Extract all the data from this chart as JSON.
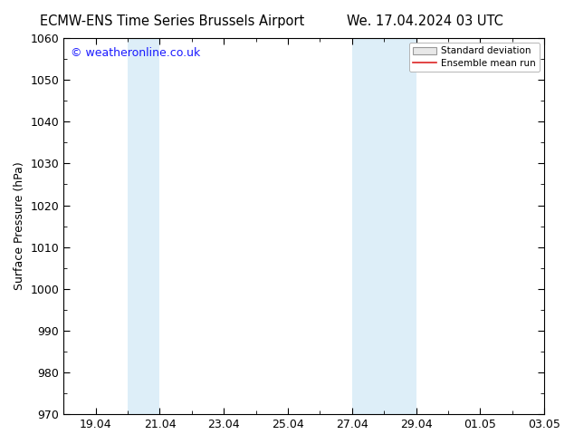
{
  "title_left": "ECMW-ENS Time Series Brussels Airport",
  "title_right": "We. 17.04.2024 03 UTC",
  "ylabel": "Surface Pressure (hPa)",
  "ylim": [
    970,
    1060
  ],
  "yticks": [
    970,
    980,
    990,
    1000,
    1010,
    1020,
    1030,
    1040,
    1050,
    1060
  ],
  "xlim": [
    0,
    15
  ],
  "xtick_positions": [
    1,
    3,
    5,
    7,
    9,
    11,
    13,
    15
  ],
  "xtick_labels": [
    "19.04",
    "21.04",
    "23.04",
    "25.04",
    "27.04",
    "29.04",
    "01.05",
    "03.05"
  ],
  "shaded_bands": [
    {
      "start": 2.0,
      "end": 3.0,
      "color": "#ddeef8"
    },
    {
      "start": 9.0,
      "end": 11.0,
      "color": "#ddeef8"
    }
  ],
  "watermark": "© weatheronline.co.uk",
  "watermark_color": "#1a1aff",
  "legend_std_label": "Standard deviation",
  "legend_mean_label": "Ensemble mean run",
  "legend_mean_color": "#dd2222",
  "legend_std_facecolor": "#e8e8e8",
  "legend_std_edgecolor": "#999999",
  "bg_color": "#ffffff",
  "title_fontsize": 10.5,
  "ylabel_fontsize": 9,
  "tick_fontsize": 9,
  "watermark_fontsize": 9
}
